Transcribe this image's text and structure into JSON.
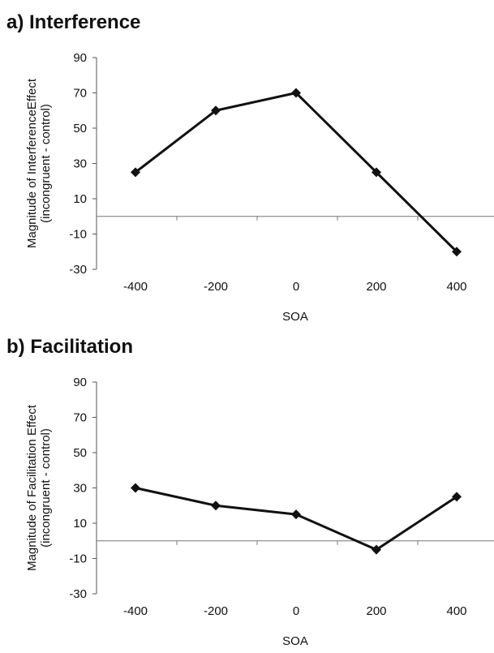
{
  "chart_data": [
    {
      "type": "line",
      "panel_title": "a) Interference",
      "title": "",
      "xlabel": "SOA",
      "ylabel_line1": "Magnitude of InterferenceEffect",
      "ylabel_line2": "(incongruent - control)",
      "x": [
        -400,
        -200,
        0,
        200,
        400
      ],
      "x_tick_labels": [
        "-400",
        "-200",
        "0",
        "200",
        "400"
      ],
      "ylim": [
        -30,
        90
      ],
      "y_ticks": [
        90,
        70,
        50,
        30,
        10,
        -10,
        -30
      ],
      "series": [
        {
          "values": [
            25,
            60,
            70,
            25,
            -20
          ],
          "color": "#111111",
          "marker": "diamond"
        }
      ],
      "reference_line_y": 0,
      "grid": false,
      "legend": "none"
    },
    {
      "type": "line",
      "panel_title": "b) Facilitation",
      "title": "",
      "xlabel": "SOA",
      "ylabel_line1": "Magnitude of Facilitation Effect",
      "ylabel_line2": "(incongruent - control)",
      "x": [
        -400,
        -200,
        0,
        200,
        400
      ],
      "x_tick_labels": [
        "-400",
        "-200",
        "0",
        "200",
        "400"
      ],
      "ylim": [
        -30,
        90
      ],
      "y_ticks": [
        90,
        70,
        50,
        30,
        10,
        -10,
        -30
      ],
      "series": [
        {
          "values": [
            30,
            20,
            15,
            -5,
            25
          ],
          "color": "#111111",
          "marker": "diamond"
        }
      ],
      "reference_line_y": 0,
      "grid": false,
      "legend": "none"
    }
  ]
}
